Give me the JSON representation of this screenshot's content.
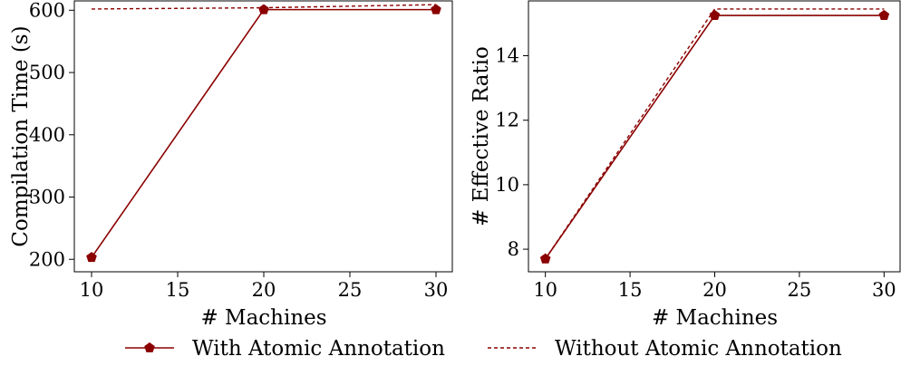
{
  "colors": {
    "series": "#8b0000",
    "axis": "#000000",
    "background": "#ffffff"
  },
  "chart_data": [
    {
      "type": "line",
      "xlabel": "# Machines",
      "ylabel": "Compilation Time (s)",
      "xlim": [
        9.0,
        31.0
      ],
      "ylim": [
        180,
        615
      ],
      "xticks": [
        10,
        15,
        20,
        25,
        30
      ],
      "yticks": [
        200,
        300,
        400,
        500,
        600
      ],
      "x": [
        10,
        20,
        30
      ],
      "series": [
        {
          "name": "With Atomic Annotation",
          "values": [
            203,
            601,
            601
          ],
          "style": "solid",
          "marker": "pentagon"
        },
        {
          "name": "Without Atomic Annotation",
          "values": [
            602,
            604,
            609
          ],
          "style": "dashed",
          "marker": "none"
        }
      ],
      "grid": false
    },
    {
      "type": "line",
      "xlabel": "# Machines",
      "ylabel": "# Effective Ratio",
      "xlim": [
        9.0,
        31.0
      ],
      "ylim": [
        7.3,
        15.7
      ],
      "xticks": [
        10,
        15,
        20,
        25,
        30
      ],
      "yticks": [
        8,
        10,
        12,
        14
      ],
      "x": [
        10,
        20,
        30
      ],
      "series": [
        {
          "name": "With Atomic Annotation",
          "values": [
            7.7,
            15.25,
            15.25
          ],
          "style": "solid",
          "marker": "pentagon"
        },
        {
          "name": "Without Atomic Annotation",
          "values": [
            7.7,
            15.45,
            15.45
          ],
          "style": "dashed",
          "marker": "none"
        }
      ],
      "grid": false
    }
  ],
  "legend": {
    "position": "bottom-center",
    "entries": [
      {
        "label": "With Atomic Annotation",
        "style": "solid",
        "marker": "pentagon"
      },
      {
        "label": "Without Atomic Annotation",
        "style": "dashed",
        "marker": "none"
      }
    ]
  }
}
